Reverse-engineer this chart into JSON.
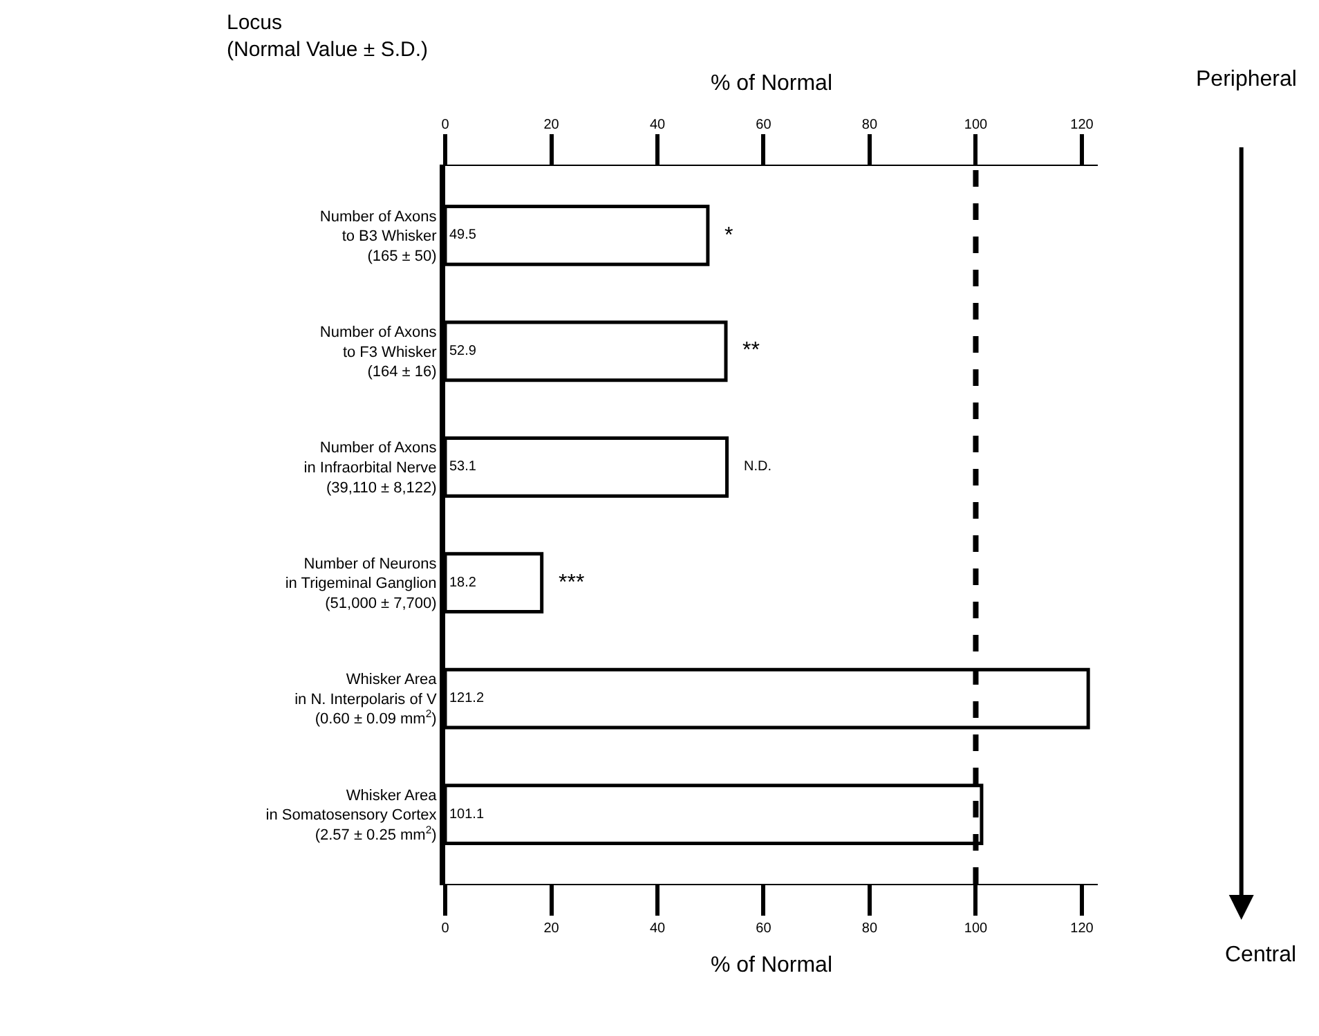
{
  "chart_data": {
    "type": "bar",
    "orientation": "horizontal",
    "categories": [
      "Number of Axons\nto B3 Whisker\n(165 ± 50)",
      "Number of Axons\nto F3 Whisker\n(164 ± 16)",
      "Number of Axons\nin Infraorbital Nerve\n(39,110 ± 8,122)",
      "Number of Neurons\nin Trigeminal Ganglion\n(51,000 ± 7,700)",
      "Whisker Area\nin N. Interpolaris of V\n(0.60 ± 0.09 mm$^{2}$)",
      "Whisker Area\nin Somatosensory Cortex\n(2.57 ± 0.25 mm$^{2}$)"
    ],
    "values": [
      49.5,
      52.9,
      53.1,
      18.2,
      121.2,
      101.1
    ],
    "color": "#ffffff",
    "data_labels": true,
    "xlabel": "% of Normal",
    "x2label": "% of Normal",
    "xlim": [
      0,
      123
    ],
    "xticks": [
      0,
      20,
      40,
      60,
      80,
      100,
      120
    ],
    "x2lim": [
      0,
      123
    ],
    "x2ticks": [
      0,
      20,
      40,
      60,
      80,
      100,
      120
    ],
    "ref_lines": [
      {
        "axis": "x",
        "value": 100,
        "line_style": "dashed",
        "color": "#000000"
      }
    ],
    "annotations": [
      {
        "text": "*",
        "x": 49.5,
        "y": "Number of Axons\nto B3 Whisker\n(165 ± 50)"
      },
      {
        "text": "**",
        "x": 52.9,
        "y": "Number of Axons\nto F3 Whisker\n(164 ± 16)"
      },
      {
        "text": "N.D.",
        "x": 53.1,
        "y": "Number of Axons\nin Infraorbital Nerve\n(39,110 ± 8,122)"
      },
      {
        "text": "***",
        "x": 18.2,
        "y": "Number of Neurons\nin Trigeminal Ganglion\n(51,000 ± 7,700)"
      },
      "Locus\n(Normal Value ± S.D.)",
      "Peripheral",
      "Central"
    ]
  }
}
